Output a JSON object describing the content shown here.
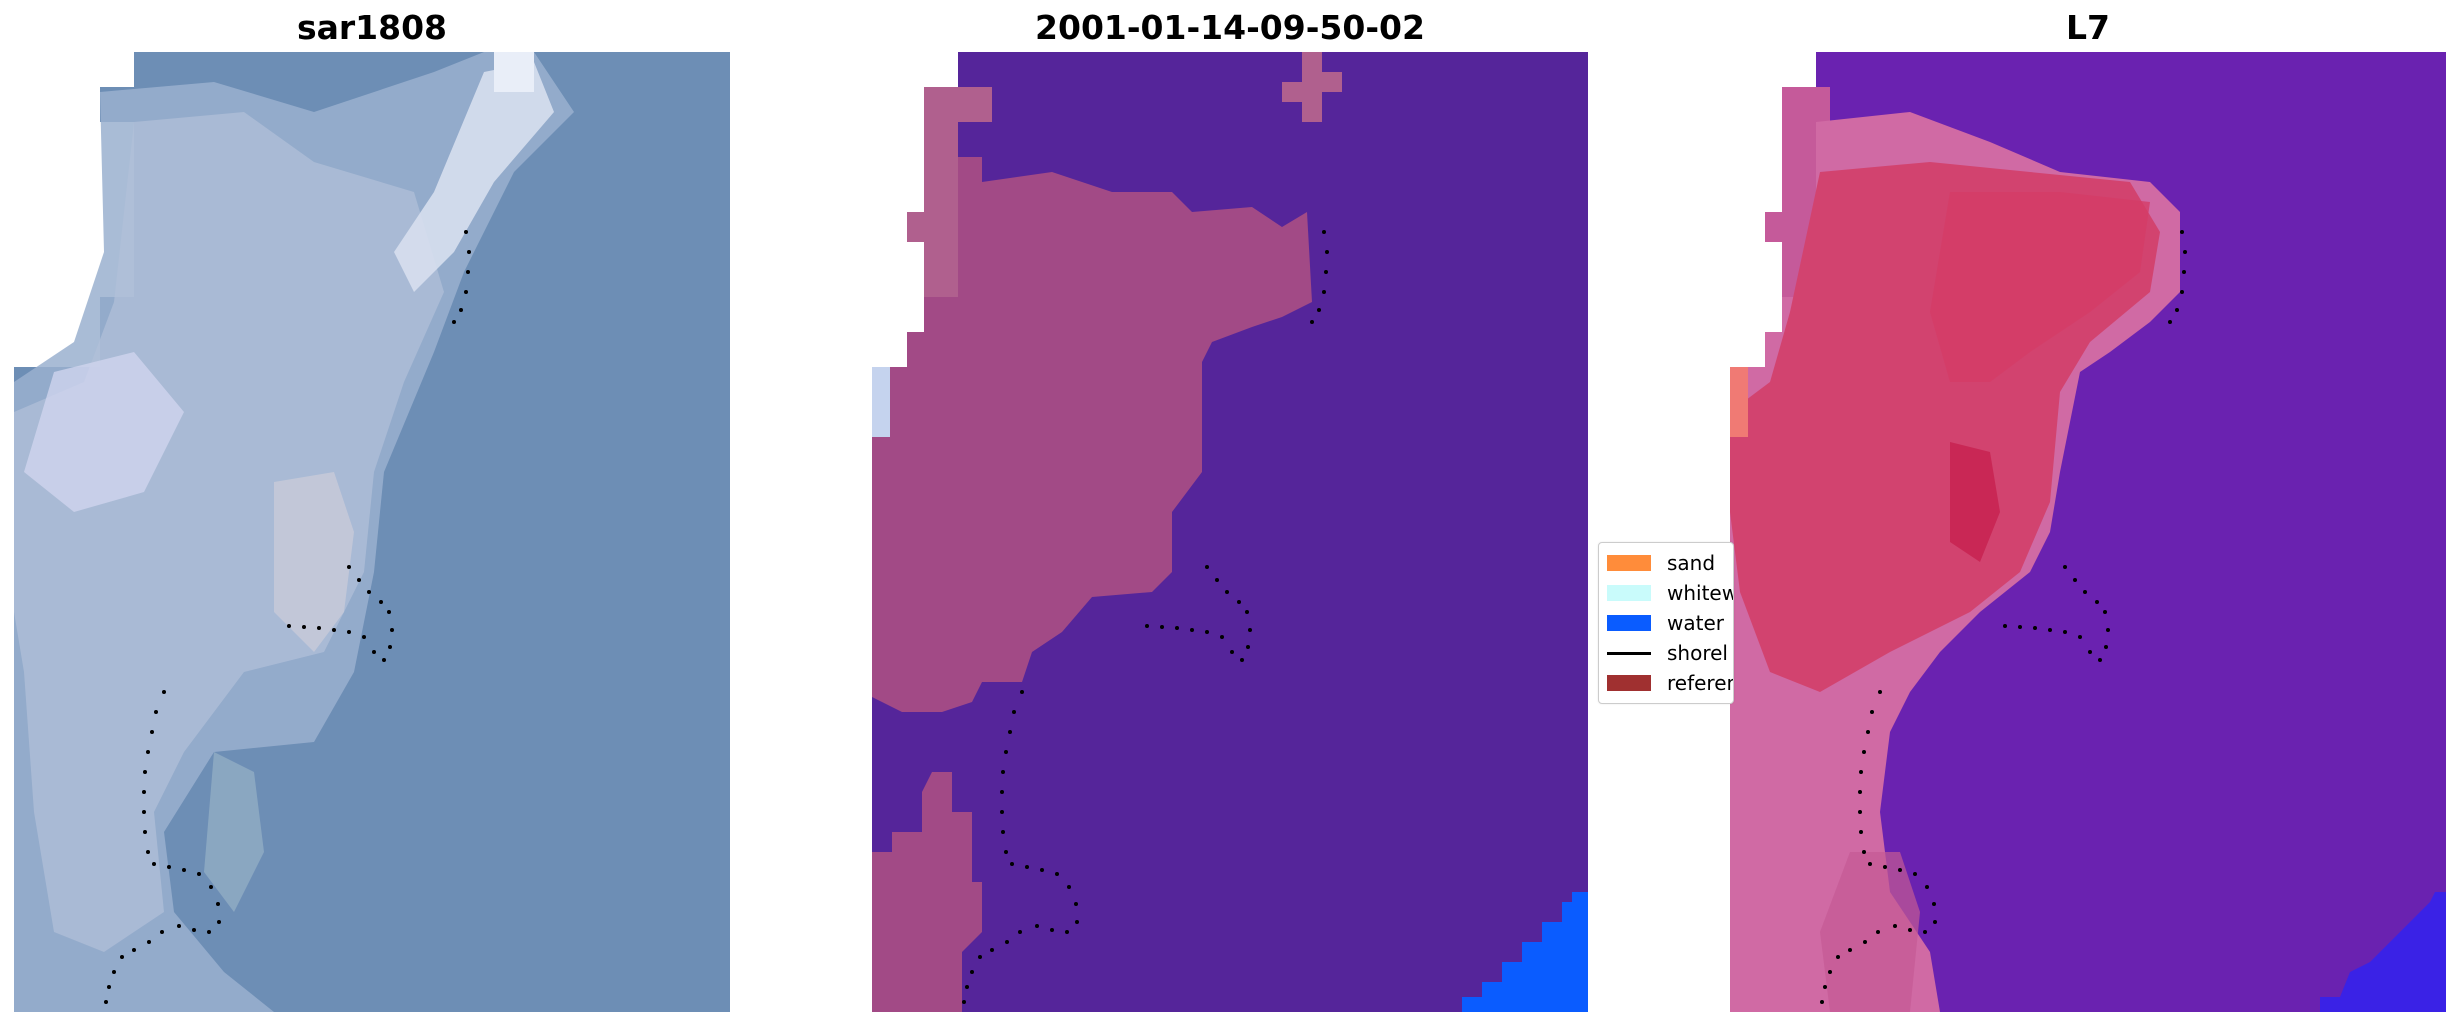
{
  "panels": [
    {
      "title": "sar1808",
      "kind": "rgb-composite"
    },
    {
      "title": "2001-01-14-09-50-02",
      "kind": "classified-overlay"
    },
    {
      "title": "L7",
      "kind": "false-color-index"
    }
  ],
  "legend": {
    "items": [
      {
        "label": "sand",
        "color": "#ff8c3a",
        "type": "patch"
      },
      {
        "label": "whitew",
        "color": "#c9fbfb",
        "type": "patch"
      },
      {
        "label": "water",
        "color": "#0a5cff",
        "type": "patch"
      },
      {
        "label": "shorel",
        "color": "#000000",
        "type": "line"
      },
      {
        "label": "referen",
        "color": "#a03030",
        "type": "patch"
      }
    ]
  },
  "colors": {
    "sar_water": "#6d8eb5",
    "sar_coast": "#b7c6dc",
    "classified_water": "#55259a",
    "classified_land": "#a24a86",
    "classified_water_blue": "#0a5cff",
    "index_water": "#6a22b0",
    "index_land": "#d2436f",
    "reference_dots": "#000000"
  }
}
